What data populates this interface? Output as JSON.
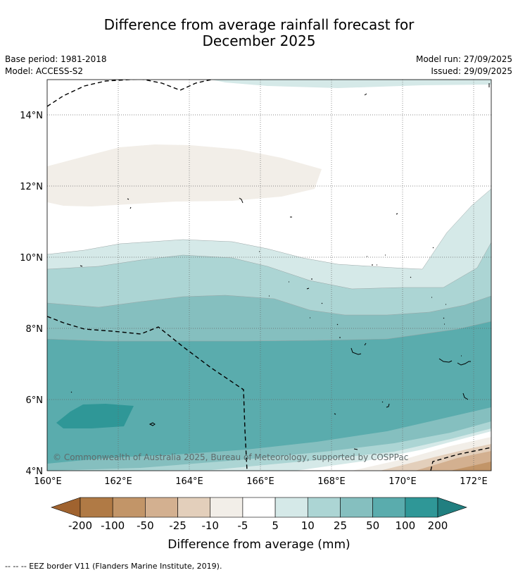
{
  "title": {
    "line1": "Difference from average rainfall forecast for",
    "line2": "December 2025"
  },
  "meta": {
    "base_period": "Base period: 1981-2018",
    "model": "Model: ACCESS-S2",
    "model_run": "Model run: 27/09/2025",
    "issued": "Issued: 29/09/2025"
  },
  "map": {
    "lon_labels": [
      "160°E",
      "162°E",
      "164°E",
      "166°E",
      "168°E",
      "170°E",
      "172°E"
    ],
    "lat_labels": [
      "4°N",
      "6°N",
      "8°N",
      "10°N",
      "12°N",
      "14°N"
    ],
    "copyright": "© Commonwealth of Australia 2025, Bureau of Meteorology, supported by COSPPac"
  },
  "colorbar": {
    "title": "Difference from average (mm)",
    "ticks": [
      "-200",
      "-100",
      "-50",
      "-25",
      "-10",
      "-5",
      "5",
      "10",
      "25",
      "50",
      "100",
      "200"
    ],
    "colors": [
      "#a0632f",
      "#b07a45",
      "#c29568",
      "#d3b090",
      "#e3cfbb",
      "#f2eee8",
      "#ffffff",
      "#d5e9e8",
      "#acd5d4",
      "#85bfbf",
      "#5aacad",
      "#2f9797",
      "#217f80"
    ]
  },
  "footnote": "--  --  -- EEZ border V11 (Flanders Marine Institute, 2019)."
}
